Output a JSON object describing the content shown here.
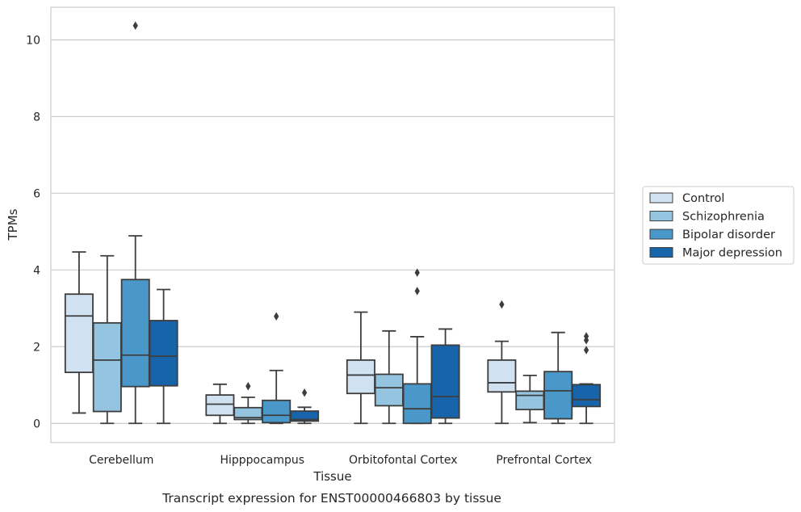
{
  "caption": "Transcript expression for ENST00000466803 by tissue",
  "chart_data": {
    "type": "boxplot",
    "xlabel": "Tissue",
    "ylabel": "TPMs",
    "ylim": [
      -0.5,
      10.85
    ],
    "yticks": [
      0,
      2,
      4,
      6,
      8,
      10
    ],
    "grid": "horizontal",
    "legend_position": "right",
    "categories": [
      "Cerebellum",
      "Hipppocampus",
      "Orbitofontal Cortex",
      "Prefrontal Cortex"
    ],
    "series": [
      {
        "name": "Control",
        "color": "#d0e1f2",
        "boxes": [
          {
            "whislo": 0.27,
            "q1": 1.33,
            "med": 2.8,
            "q3": 3.37,
            "whishi": 4.47,
            "fliers": []
          },
          {
            "whislo": 0.0,
            "q1": 0.21,
            "med": 0.5,
            "q3": 0.74,
            "whishi": 1.02,
            "fliers": []
          },
          {
            "whislo": 0.0,
            "q1": 0.78,
            "med": 1.26,
            "q3": 1.65,
            "whishi": 2.9,
            "fliers": []
          },
          {
            "whislo": 0.0,
            "q1": 0.82,
            "med": 1.06,
            "q3": 1.65,
            "whishi": 2.14,
            "fliers": [
              3.1
            ]
          }
        ]
      },
      {
        "name": "Schizophrenia",
        "color": "#94c4df",
        "boxes": [
          {
            "whislo": 0.0,
            "q1": 0.31,
            "med": 1.65,
            "q3": 2.62,
            "whishi": 4.37,
            "fliers": []
          },
          {
            "whislo": 0.0,
            "q1": 0.1,
            "med": 0.15,
            "q3": 0.41,
            "whishi": 0.68,
            "fliers": [
              0.97
            ]
          },
          {
            "whislo": 0.0,
            "q1": 0.46,
            "med": 0.93,
            "q3": 1.28,
            "whishi": 2.41,
            "fliers": []
          },
          {
            "whislo": 0.02,
            "q1": 0.36,
            "med": 0.73,
            "q3": 0.84,
            "whishi": 1.25,
            "fliers": []
          }
        ]
      },
      {
        "name": "Bipolar disorder",
        "color": "#4a98c9",
        "boxes": [
          {
            "whislo": 0.0,
            "q1": 0.96,
            "med": 1.78,
            "q3": 3.75,
            "whishi": 4.89,
            "fliers": [
              10.37
            ]
          },
          {
            "whislo": 0.0,
            "q1": 0.02,
            "med": 0.21,
            "q3": 0.6,
            "whishi": 1.38,
            "fliers": [
              2.79
            ]
          },
          {
            "whislo": 0.0,
            "q1": 0.0,
            "med": 0.38,
            "q3": 1.03,
            "whishi": 2.26,
            "fliers": [
              3.45,
              3.93
            ]
          },
          {
            "whislo": 0.0,
            "q1": 0.12,
            "med": 0.85,
            "q3": 1.35,
            "whishi": 2.37,
            "fliers": []
          }
        ]
      },
      {
        "name": "Major depression",
        "color": "#1764ab",
        "boxes": [
          {
            "whislo": 0.0,
            "q1": 0.98,
            "med": 1.75,
            "q3": 2.68,
            "whishi": 3.49,
            "fliers": []
          },
          {
            "whislo": 0.0,
            "q1": 0.06,
            "med": 0.1,
            "q3": 0.32,
            "whishi": 0.42,
            "fliers": [
              0.8
            ]
          },
          {
            "whislo": 0.0,
            "q1": 0.14,
            "med": 0.7,
            "q3": 2.04,
            "whishi": 2.46,
            "fliers": []
          },
          {
            "whislo": 0.0,
            "q1": 0.44,
            "med": 0.62,
            "q3": 1.01,
            "whishi": 1.03,
            "fliers": [
              1.91,
              2.17,
              2.27
            ]
          }
        ]
      }
    ]
  }
}
